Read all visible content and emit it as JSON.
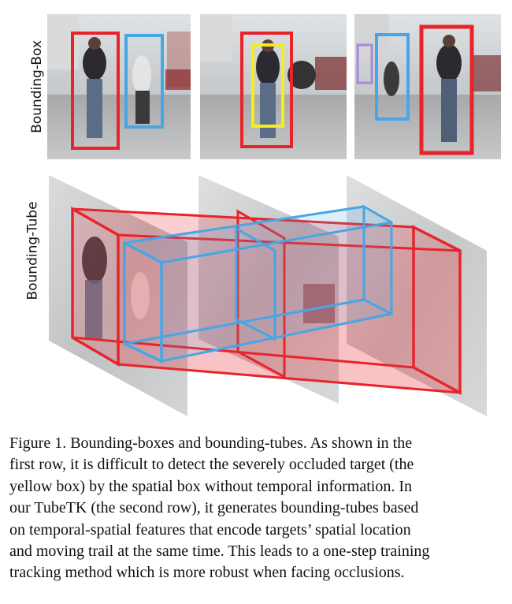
{
  "figure": {
    "row_labels": [
      "Bounding-Box",
      "Bounding-Tube"
    ],
    "colors": {
      "red": "#e8242a",
      "blue": "#46a6e6",
      "yellow": "#f4ee1c",
      "purple": "#a98ad6"
    }
  },
  "caption": {
    "lines": [
      "Figure 1. Bounding-boxes and bounding-tubes.  As shown in the",
      "first row, it is difficult to detect the severely occluded target (the",
      "yellow box) by the spatial box without temporal information.  In",
      "our TubeTK (the second row), it generates bounding-tubes based",
      "on temporal-spatial features that encode targets’ spatial location",
      "and moving trail at the same time. This leads to a one-step training",
      "tracking method which is more robust when facing occlusions."
    ]
  }
}
